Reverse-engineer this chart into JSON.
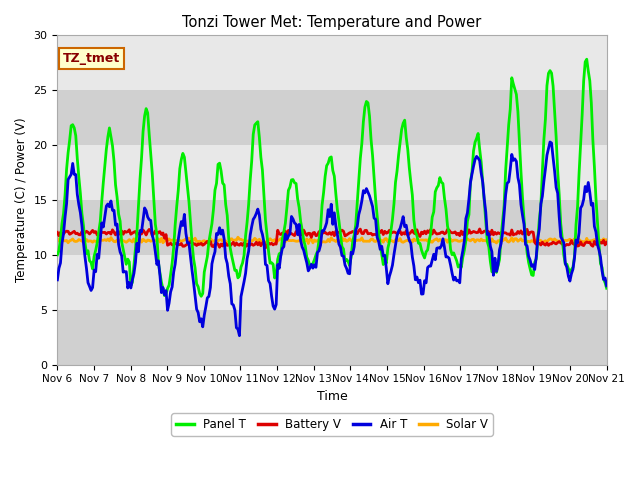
{
  "title": "Tonzi Tower Met: Temperature and Power",
  "xlabel": "Time",
  "ylabel": "Temperature (C) / Power (V)",
  "ylim": [
    0,
    30
  ],
  "yticks": [
    0,
    5,
    10,
    15,
    20,
    25,
    30
  ],
  "annotation": "TZ_tmet",
  "plot_bg_light": "#e8e8e8",
  "plot_bg_dark": "#d0d0d0",
  "fig_bg": "#ffffff",
  "xtick_labels": [
    "Nov 6",
    "Nov 7",
    "Nov 8",
    "Nov 9",
    "Nov 10",
    "Nov 11",
    "Nov 12",
    "Nov 13",
    "Nov 14",
    "Nov 15",
    "Nov 16",
    "Nov 17",
    "Nov 18",
    "Nov 19",
    "Nov 20",
    "Nov 21"
  ],
  "panel_t_color": "#00ee00",
  "battery_v_color": "#dd0000",
  "air_t_color": "#0000dd",
  "solar_v_color": "#ffaa00",
  "linewidth_thick": 2.0,
  "linewidth_thin": 1.5,
  "n_days": 15,
  "pts_per_day": 24
}
